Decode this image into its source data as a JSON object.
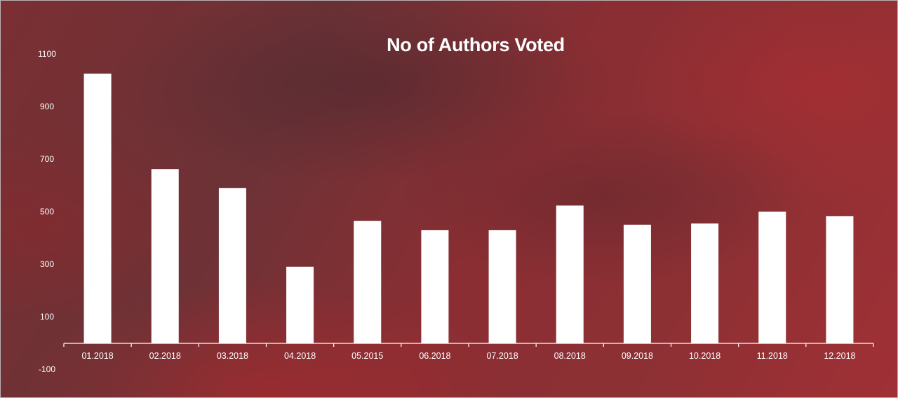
{
  "chart_data": {
    "type": "bar",
    "title": "No of Authors Voted",
    "xlabel": "",
    "ylabel": "",
    "categories": [
      "01.2018",
      "02.2018",
      "03.2018",
      "04.2018",
      "05.2015",
      "06.2018",
      "07.2018",
      "08.2018",
      "09.2018",
      "10.2018",
      "11.2018",
      "12.2018"
    ],
    "values": [
      1025,
      662,
      590,
      290,
      465,
      430,
      430,
      523,
      450,
      455,
      500,
      483
    ],
    "y_ticks": [
      "1100",
      "900",
      "700",
      "500",
      "300",
      "100",
      "-100"
    ],
    "y_tick_values": [
      1100,
      900,
      700,
      500,
      300,
      100,
      -100
    ],
    "ylim": [
      -100,
      1100
    ],
    "grid": false,
    "legend": "none",
    "bar_color": "#ffffff"
  }
}
